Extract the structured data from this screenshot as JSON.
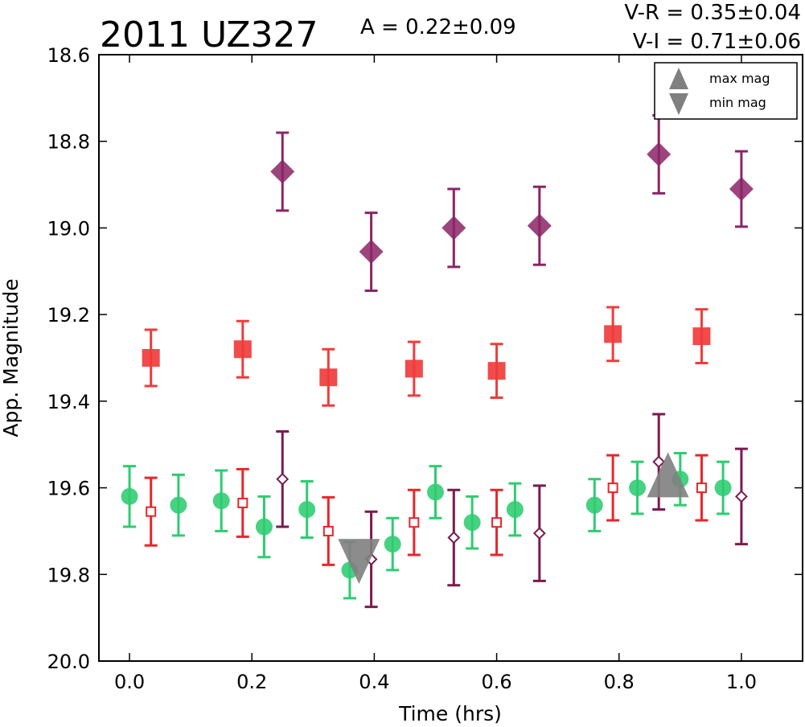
{
  "chart_data": {
    "type": "scatter",
    "title": "2011 UZ327",
    "annotations": {
      "amplitude": "A  = 0.22±0.09",
      "v_r": "V-R = 0.35±0.04",
      "v_i": "V-I  = 0.71±0.06"
    },
    "xlabel": "Time (hrs)",
    "ylabel": "App. Magnitude",
    "xlim": [
      -0.05,
      1.1
    ],
    "ylim": [
      20.0,
      18.6
    ],
    "y_inverted": true,
    "grid": false,
    "xticks": [
      "0.0",
      "0.2",
      "0.4",
      "0.6",
      "0.8",
      "1.0"
    ],
    "yticks": [
      "18.6",
      "18.8",
      "19.0",
      "19.2",
      "19.4",
      "19.6",
      "19.8",
      "20.0"
    ],
    "legend": {
      "position": "top-right",
      "entries": [
        {
          "label": "max mag",
          "marker": "triangle-up",
          "color": "#808080"
        },
        {
          "label": "min mag",
          "marker": "triangle-down",
          "color": "#808080"
        }
      ]
    },
    "series": [
      {
        "marker": "circle-filled",
        "color": "#2ecc71",
        "x": [
          0.0,
          0.08,
          0.15,
          0.22,
          0.29,
          0.36,
          0.43,
          0.5,
          0.56,
          0.63,
          0.76,
          0.83,
          0.9,
          0.97
        ],
        "y": [
          19.62,
          19.64,
          19.63,
          19.69,
          19.65,
          19.79,
          19.73,
          19.61,
          19.68,
          19.65,
          19.64,
          19.6,
          19.58,
          19.6
        ],
        "err": [
          0.07,
          0.07,
          0.07,
          0.07,
          0.065,
          0.065,
          0.06,
          0.06,
          0.06,
          0.06,
          0.06,
          0.06,
          0.06,
          0.06
        ]
      },
      {
        "marker": "square-open",
        "color": "#e8262b",
        "x": [
          0.035,
          0.185,
          0.325,
          0.465,
          0.6,
          0.79,
          0.935
        ],
        "y": [
          19.655,
          19.635,
          19.7,
          19.68,
          19.68,
          19.6,
          19.6
        ],
        "err": [
          0.078,
          0.078,
          0.078,
          0.075,
          0.075,
          0.075,
          0.075
        ]
      },
      {
        "marker": "diamond-open",
        "color": "#7b1a4f",
        "x": [
          0.25,
          0.395,
          0.53,
          0.67,
          0.865,
          1.0
        ],
        "y": [
          19.58,
          19.765,
          19.715,
          19.705,
          19.54,
          19.62
        ],
        "err": [
          0.11,
          0.11,
          0.11,
          0.11,
          0.11,
          0.11
        ]
      },
      {
        "marker": "square-filled",
        "color": "#f03c3c",
        "x": [
          0.035,
          0.185,
          0.325,
          0.465,
          0.6,
          0.79,
          0.935
        ],
        "y": [
          19.3,
          19.28,
          19.345,
          19.325,
          19.33,
          19.245,
          19.25
        ],
        "err": [
          0.065,
          0.065,
          0.065,
          0.062,
          0.062,
          0.062,
          0.062
        ]
      },
      {
        "marker": "diamond-filled",
        "color": "#8b2566",
        "x": [
          0.25,
          0.395,
          0.53,
          0.67,
          0.865,
          1.0
        ],
        "y": [
          18.87,
          19.055,
          19.0,
          18.995,
          18.83,
          18.91
        ],
        "err": [
          0.09,
          0.09,
          0.09,
          0.09,
          0.09,
          0.087
        ]
      }
    ],
    "extrema": [
      {
        "label": "min mag",
        "marker": "triangle-down",
        "color": "#808080",
        "x": 0.375,
        "y": 19.77
      },
      {
        "label": "max mag",
        "marker": "triangle-up",
        "color": "#808080",
        "x": 0.88,
        "y": 19.57
      }
    ]
  }
}
